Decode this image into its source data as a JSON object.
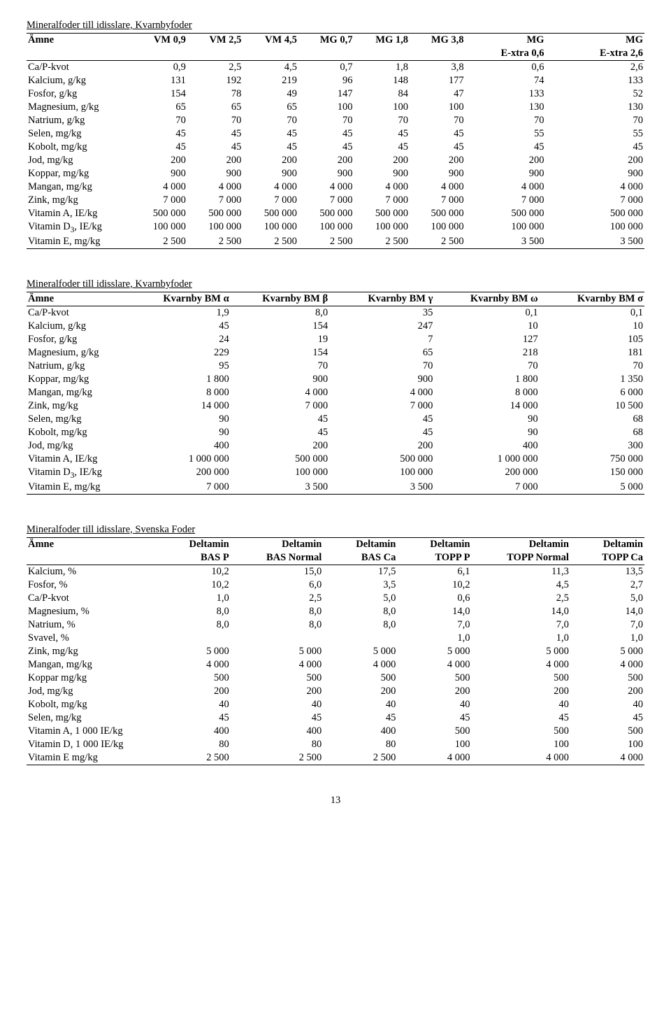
{
  "table1": {
    "caption": "Mineralfoder till idisslare, Kvarnbyfoder",
    "header_row1": [
      "Ämne",
      "VM 0,9",
      "VM 2,5",
      "VM 4,5",
      "MG 0,7",
      "MG 1,8",
      "MG 3,8",
      "MG",
      "MG"
    ],
    "header_row2": [
      "",
      "",
      "",
      "",
      "",
      "",
      "",
      "E-xtra 0,6",
      "E-xtra 2,6"
    ],
    "rows": [
      {
        "label": "Ca/P-kvot",
        "v": [
          "0,9",
          "2,5",
          "4,5",
          "0,7",
          "1,8",
          "3,8",
          "0,6",
          "2,6"
        ]
      },
      {
        "label": "Kalcium, g/kg",
        "v": [
          "131",
          "192",
          "219",
          "96",
          "148",
          "177",
          "74",
          "133"
        ]
      },
      {
        "label": "Fosfor, g/kg",
        "v": [
          "154",
          "78",
          "49",
          "147",
          "84",
          "47",
          "133",
          "52"
        ]
      },
      {
        "label": "Magnesium, g/kg",
        "v": [
          "65",
          "65",
          "65",
          "100",
          "100",
          "100",
          "130",
          "130"
        ]
      },
      {
        "label": "Natrium, g/kg",
        "v": [
          "70",
          "70",
          "70",
          "70",
          "70",
          "70",
          "70",
          "70"
        ]
      },
      {
        "label": "Selen, mg/kg",
        "v": [
          "45",
          "45",
          "45",
          "45",
          "45",
          "45",
          "55",
          "55"
        ]
      },
      {
        "label": "Kobolt, mg/kg",
        "v": [
          "45",
          "45",
          "45",
          "45",
          "45",
          "45",
          "45",
          "45"
        ]
      },
      {
        "label": "Jod, mg/kg",
        "v": [
          "200",
          "200",
          "200",
          "200",
          "200",
          "200",
          "200",
          "200"
        ]
      },
      {
        "label": "Koppar, mg/kg",
        "v": [
          "900",
          "900",
          "900",
          "900",
          "900",
          "900",
          "900",
          "900"
        ]
      },
      {
        "label": "Mangan, mg/kg",
        "v": [
          "4 000",
          "4 000",
          "4 000",
          "4 000",
          "4 000",
          "4 000",
          "4 000",
          "4 000"
        ]
      },
      {
        "label": "Zink, mg/kg",
        "v": [
          "7 000",
          "7 000",
          "7 000",
          "7 000",
          "7 000",
          "7 000",
          "7 000",
          "7 000"
        ]
      },
      {
        "label": "Vitamin A, IE/kg",
        "v": [
          "500 000",
          "500 000",
          "500 000",
          "500 000",
          "500 000",
          "500 000",
          "500 000",
          "500 000"
        ]
      },
      {
        "label_html": "Vitamin D<sub>3</sub>, IE/kg",
        "v": [
          "100 000",
          "100 000",
          "100 000",
          "100 000",
          "100 000",
          "100 000",
          "100 000",
          "100 000"
        ]
      },
      {
        "label": "Vitamin E, mg/kg",
        "v": [
          "2 500",
          "2 500",
          "2 500",
          "2 500",
          "2 500",
          "2 500",
          "3 500",
          "3 500"
        ]
      }
    ]
  },
  "table2": {
    "caption": "Mineralfoder till idisslare, Kvarnbyfoder",
    "header": [
      "Ämne",
      "Kvarnby BM α",
      "Kvarnby BM β",
      "Kvarnby BM γ",
      "Kvarnby BM ω",
      "Kvarnby BM σ"
    ],
    "rows": [
      {
        "label": "Ca/P-kvot",
        "v": [
          "1,9",
          "8,0",
          "35",
          "0,1",
          "0,1"
        ]
      },
      {
        "label": "Kalcium, g/kg",
        "v": [
          "45",
          "154",
          "247",
          "10",
          "10"
        ]
      },
      {
        "label": "Fosfor, g/kg",
        "v": [
          "24",
          "19",
          "7",
          "127",
          "105"
        ]
      },
      {
        "label": "Magnesium, g/kg",
        "v": [
          "229",
          "154",
          "65",
          "218",
          "181"
        ]
      },
      {
        "label": "Natrium, g/kg",
        "v": [
          "95",
          "70",
          "70",
          "70",
          "70"
        ]
      },
      {
        "label": "Koppar, mg/kg",
        "v": [
          "1 800",
          "900",
          "900",
          "1 800",
          "1 350"
        ]
      },
      {
        "label": "Mangan, mg/kg",
        "v": [
          "8 000",
          "4 000",
          "4 000",
          "8 000",
          "6 000"
        ]
      },
      {
        "label": "Zink, mg/kg",
        "v": [
          "14 000",
          "7 000",
          "7 000",
          "14 000",
          "10 500"
        ]
      },
      {
        "label": "Selen, mg/kg",
        "v": [
          "90",
          "45",
          "45",
          "90",
          "68"
        ]
      },
      {
        "label": "Kobolt, mg/kg",
        "v": [
          "90",
          "45",
          "45",
          "90",
          "68"
        ]
      },
      {
        "label": "Jod, mg/kg",
        "v": [
          "400",
          "200",
          "200",
          "400",
          "300"
        ]
      },
      {
        "label": "Vitamin A, IE/kg",
        "v": [
          "1 000 000",
          "500 000",
          "500 000",
          "1 000 000",
          "750 000"
        ]
      },
      {
        "label_html": "Vitamin D<sub>3</sub>, IE/kg",
        "v": [
          "200 000",
          "100 000",
          "100 000",
          "200 000",
          "150 000"
        ]
      },
      {
        "label": "Vitamin E, mg/kg",
        "v": [
          "7 000",
          "3 500",
          "3 500",
          "7 000",
          "5 000"
        ]
      }
    ]
  },
  "table3": {
    "caption": "Mineralfoder till idisslare, Svenska Foder",
    "header_row1": [
      "Ämne",
      "Deltamin",
      "Deltamin",
      "Deltamin",
      "Deltamin",
      "Deltamin",
      "Deltamin"
    ],
    "header_row2": [
      "",
      "BAS P",
      "BAS Normal",
      "BAS Ca",
      "TOPP P",
      "TOPP Normal",
      "TOPP Ca"
    ],
    "rows": [
      {
        "label": "Kalcium, %",
        "v": [
          "10,2",
          "15,0",
          "17,5",
          "6,1",
          "11,3",
          "13,5"
        ]
      },
      {
        "label": "Fosfor, %",
        "v": [
          "10,2",
          "6,0",
          "3,5",
          "10,2",
          "4,5",
          "2,7"
        ]
      },
      {
        "label": "Ca/P-kvot",
        "v": [
          "1,0",
          "2,5",
          "5,0",
          "0,6",
          "2,5",
          "5,0"
        ]
      },
      {
        "label": "Magnesium, %",
        "v": [
          "8,0",
          "8,0",
          "8,0",
          "14,0",
          "14,0",
          "14,0"
        ]
      },
      {
        "label": "Natrium, %",
        "v": [
          "8,0",
          "8,0",
          "8,0",
          "7,0",
          "7,0",
          "7,0"
        ]
      },
      {
        "label": "Svavel, %",
        "v": [
          "",
          "",
          "",
          "1,0",
          "1,0",
          "1,0"
        ]
      },
      {
        "label": "Zink, mg/kg",
        "v": [
          "5 000",
          "5 000",
          "5 000",
          "5 000",
          "5 000",
          "5 000"
        ]
      },
      {
        "label": "Mangan, mg/kg",
        "v": [
          "4 000",
          "4 000",
          "4 000",
          "4 000",
          "4 000",
          "4 000"
        ]
      },
      {
        "label": "Koppar mg/kg",
        "v": [
          "500",
          "500",
          "500",
          "500",
          "500",
          "500"
        ]
      },
      {
        "label": "Jod, mg/kg",
        "v": [
          "200",
          "200",
          "200",
          "200",
          "200",
          "200"
        ]
      },
      {
        "label": "Kobolt, mg/kg",
        "v": [
          "40",
          "40",
          "40",
          "40",
          "40",
          "40"
        ]
      },
      {
        "label": "Selen, mg/kg",
        "v": [
          "45",
          "45",
          "45",
          "45",
          "45",
          "45"
        ]
      },
      {
        "label": "Vitamin A, 1 000 IE/kg",
        "v": [
          "400",
          "400",
          "400",
          "500",
          "500",
          "500"
        ]
      },
      {
        "label": "Vitamin D, 1 000 IE/kg",
        "v": [
          "80",
          "80",
          "80",
          "100",
          "100",
          "100"
        ]
      },
      {
        "label": "Vitamin E mg/kg",
        "v": [
          "2 500",
          "2 500",
          "2 500",
          "4 000",
          "4 000",
          "4 000"
        ]
      }
    ]
  },
  "page_number": "13",
  "layout": {
    "col_widths_t1": [
      "17%",
      "9%",
      "9%",
      "9%",
      "9%",
      "9%",
      "9%",
      "13%",
      "16%"
    ],
    "col_widths_t2": [
      "17%",
      "16%",
      "16%",
      "17%",
      "17%",
      "17%"
    ],
    "col_widths_t3": [
      "22%",
      "11%",
      "15%",
      "12%",
      "12%",
      "16%",
      "12%"
    ]
  }
}
